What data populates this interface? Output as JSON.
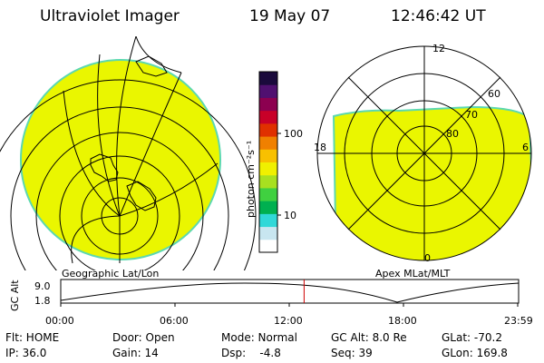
{
  "header": {
    "instrument": "Ultraviolet Imager",
    "date": "19 May 07",
    "time": "12:46:42 UT"
  },
  "left_panel": {
    "caption": "Geographic Lat/Lon"
  },
  "right_panel": {
    "caption": "Apex MLat/MLT",
    "mlt_labels": {
      "top": "12",
      "left": "18",
      "right": "6",
      "bottom": "0"
    },
    "lat_labels": [
      "60",
      "70",
      "80"
    ]
  },
  "colorbar": {
    "unit_label": "photon cm⁻²s⁻¹",
    "ticks": [
      "100",
      "10"
    ],
    "scale": "log",
    "colors": [
      "#ffffff",
      "#c8e6f0",
      "#30d8d8",
      "#00b050",
      "#40d040",
      "#a8e020",
      "#f0f000",
      "#f8c000",
      "#f08000",
      "#e03000",
      "#c80028",
      "#8c0050",
      "#501070",
      "#1a0a3c"
    ]
  },
  "alt_plot": {
    "ylabel": "GC Alt",
    "yticks": [
      "9.0",
      "1.8"
    ],
    "xticks": [
      "00:00",
      "06:00",
      "12:00",
      "18:00",
      "23:59"
    ],
    "current_time_hours": 12.78
  },
  "info": {
    "flt": "Flt: HOME",
    "ip": "IP: 36.0",
    "door": "Door: Open",
    "gain": "Gain: 14",
    "mode": "Mode: Normal",
    "dsp": "Dsp:    -4.8",
    "gcalt": "GC Alt: 8.0 Re",
    "seq": "Seq: 39",
    "glat": "GLat: -70.2",
    "glon": "GLon: 169.8"
  },
  "colors": {
    "image_fill": "#eaf600",
    "image_edge": "#5cd8b0",
    "grid": "#000000",
    "time_marker": "#d00000"
  }
}
